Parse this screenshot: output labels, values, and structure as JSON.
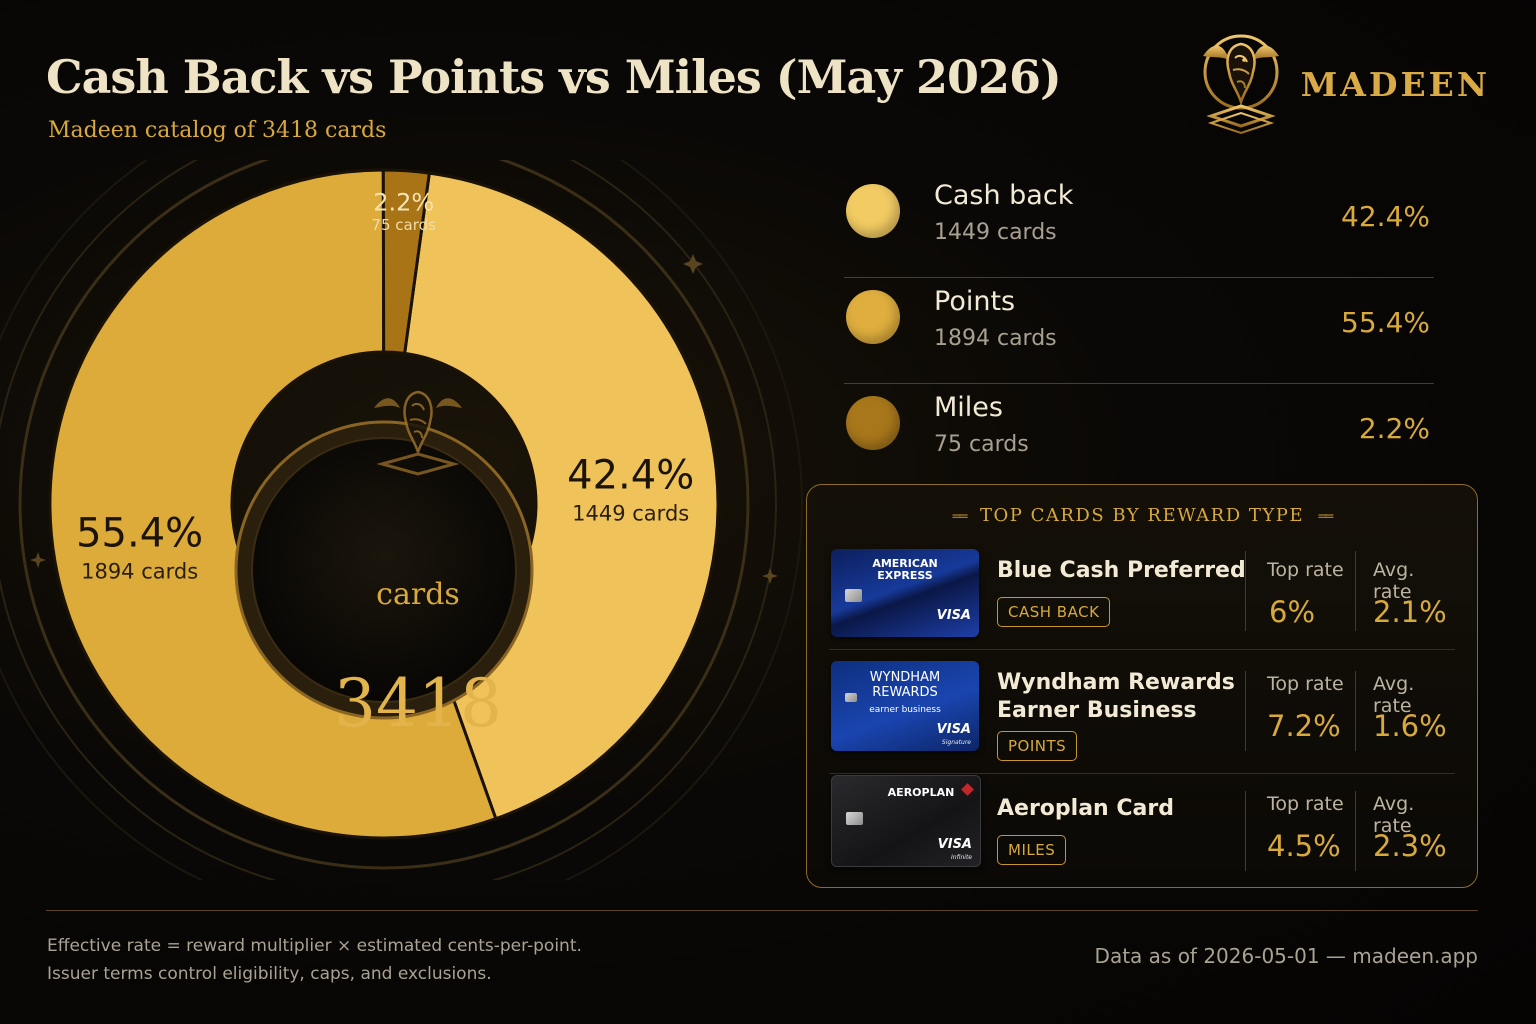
{
  "header": {
    "title": "Cash Back vs Points vs Miles (May 2026)",
    "subtitle": "Madeen catalog of 3418 cards",
    "brand_name": "MADEEN"
  },
  "chart_data": {
    "type": "pie",
    "center_value": "3418",
    "center_unit": "cards",
    "slices": [
      {
        "name": "Cash back",
        "value": 42.4,
        "count_label": "1449 cards",
        "pct_label": "42.4%",
        "color": "#f0c35a"
      },
      {
        "name": "Points",
        "value": 55.4,
        "count_label": "1894 cards",
        "pct_label": "55.4%",
        "color": "#dcab3a"
      },
      {
        "name": "Miles",
        "value": 2.2,
        "count_label": "75 cards",
        "pct_label": "2.2%",
        "color": "#a87416"
      }
    ]
  },
  "legend": [
    {
      "label": "Cash back",
      "count": "1449 cards",
      "pct": "42.4%",
      "color": "#f2cb63"
    },
    {
      "label": "Points",
      "count": "1894 cards",
      "pct": "55.4%",
      "color": "#dfae3e"
    },
    {
      "label": "Miles",
      "count": "75 cards",
      "pct": "2.2%",
      "color": "#a8771b"
    }
  ],
  "top_cards": {
    "heading": "TOP CARDS BY REWARD TYPE",
    "top_rate_label": "Top rate",
    "avg_rate_label": "Avg. rate",
    "items": [
      {
        "name_line1": "Blue Cash Preferred",
        "name_line2": "",
        "badge": "CASH BACK",
        "top_rate": "6%",
        "avg_rate": "2.1%",
        "card_brand_line1": "AMERICAN",
        "card_brand_line2": "EXPRESS",
        "card_network": "VISA"
      },
      {
        "name_line1": "Wyndham Rewards",
        "name_line2": "Earner Business",
        "badge": "POINTS",
        "top_rate": "7.2%",
        "avg_rate": "1.6%",
        "card_brand_line1": "WYNDHAM",
        "card_brand_line2": "REWARDS",
        "card_brand_line3": "earner business",
        "card_network": "VISA",
        "card_tier": "Signature"
      },
      {
        "name_line1": "Aeroplan Card",
        "name_line2": "",
        "badge": "MILES",
        "top_rate": "4.5%",
        "avg_rate": "2.3%",
        "card_brand_line1": "AEROPLAN",
        "card_network": "VISA",
        "card_tier": "Infinite"
      }
    ]
  },
  "footer": {
    "note_line1": "Effective rate = reward multiplier × estimated cents-per-point.",
    "note_line2": "Issuer terms control eligibility, caps, and exclusions.",
    "source": "Data as of 2026-05-01 — madeen.app"
  }
}
